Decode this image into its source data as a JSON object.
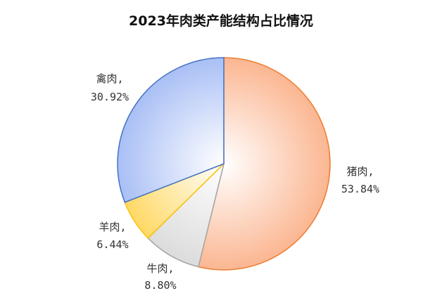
{
  "chart_data": {
    "type": "pie",
    "title": "2023年肉类产能结构占比情况",
    "slices": [
      {
        "name": "猪肉",
        "value": 53.84,
        "display": "53.84%",
        "label_line1": "猪肉,",
        "color": "#FBB691",
        "edge": "#ED7D31"
      },
      {
        "name": "牛肉",
        "value": 8.8,
        "display": "8.80%",
        "label_line1": "牛肉,",
        "color": "#DCDCDC",
        "edge": "#A5A5A5"
      },
      {
        "name": "羊肉",
        "value": 6.44,
        "display": "6.44%",
        "label_line1": "羊肉,",
        "color": "#FFD966",
        "edge": "#FFC000"
      },
      {
        "name": "禽肉",
        "value": 30.92,
        "display": "30.92%",
        "label_line1": "禽肉,",
        "color": "#A9BFF5",
        "edge": "#4472C4"
      }
    ],
    "start": "12 o'clock",
    "direction": "clockwise",
    "legend": "none"
  }
}
